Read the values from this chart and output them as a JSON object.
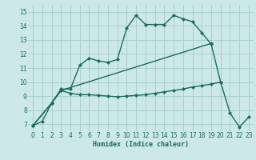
{
  "xlabel": "Humidex (Indice chaleur)",
  "bg_color": "#cce8e8",
  "grid_color": "#aacfcf",
  "line_color": "#1a6b5a",
  "xlim": [
    -0.5,
    23.5
  ],
  "ylim": [
    6.5,
    15.5
  ],
  "xticks": [
    0,
    1,
    2,
    3,
    4,
    5,
    6,
    7,
    8,
    9,
    10,
    11,
    12,
    13,
    14,
    15,
    16,
    17,
    18,
    19,
    20,
    21,
    22,
    23
  ],
  "yticks": [
    7,
    8,
    9,
    10,
    11,
    12,
    13,
    14,
    15
  ],
  "line1_x": [
    0,
    1,
    2,
    3,
    4,
    5,
    6,
    7,
    8,
    9,
    10,
    11,
    12,
    13,
    14,
    15,
    16,
    17,
    18,
    19,
    20
  ],
  "line1_y": [
    6.9,
    7.2,
    8.5,
    9.5,
    9.5,
    11.2,
    11.7,
    11.5,
    11.4,
    11.6,
    13.85,
    14.75,
    14.1,
    14.1,
    14.1,
    14.75,
    14.5,
    14.3,
    13.5,
    12.7,
    10.0
  ],
  "line2_x": [
    0,
    2,
    3,
    4,
    5,
    6,
    7,
    8,
    9,
    10,
    11,
    12,
    13,
    14,
    15,
    16,
    17,
    18,
    19,
    20,
    21,
    22,
    23
  ],
  "line2_y": [
    6.9,
    8.5,
    9.4,
    9.2,
    9.1,
    9.1,
    9.05,
    9.0,
    8.95,
    9.0,
    9.05,
    9.1,
    9.2,
    9.3,
    9.4,
    9.5,
    9.65,
    9.75,
    9.85,
    10.0,
    7.8,
    6.8,
    7.5
  ],
  "line3_x": [
    0,
    2,
    3,
    19
  ],
  "line3_y": [
    6.9,
    8.5,
    9.4,
    12.75
  ]
}
